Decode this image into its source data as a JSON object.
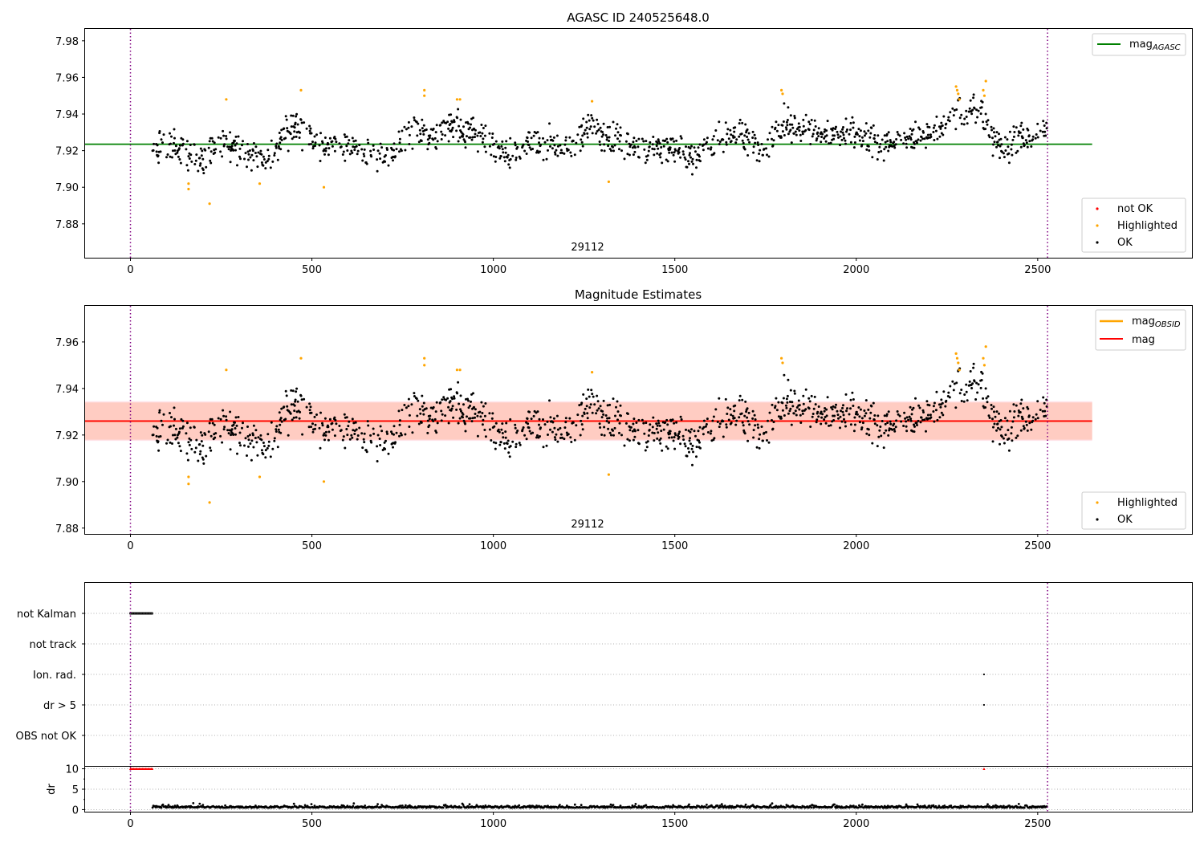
{
  "chart_data": [
    {
      "id": "agasc",
      "type": "scatter",
      "title": "AGASC ID 240525648.0",
      "xlim": [
        -125,
        2925
      ],
      "ylim": [
        7.8615,
        7.9865
      ],
      "x_ticks": [
        0,
        500,
        1000,
        1500,
        2000,
        2500
      ],
      "y_ticks": [
        7.88,
        7.9,
        7.92,
        7.94,
        7.96,
        7.98
      ],
      "y_tick_labels": [
        "7.88",
        "7.90",
        "7.92",
        "7.94",
        "7.96",
        "7.98"
      ],
      "obsid_label": "29112",
      "obs_boundaries": [
        0,
        2527
      ],
      "hline": {
        "name": "mag_AGASC",
        "value": 7.9235,
        "x_range": [
          -125,
          2650
        ],
        "color": "#008000"
      },
      "legend_line": {
        "base": "mag",
        "sub": "AGASC"
      },
      "legend_markers": [
        {
          "label": "not OK",
          "color": "#ff0000"
        },
        {
          "label": "Highlighted",
          "color": "#ffa500"
        },
        {
          "label": "OK",
          "color": "#000000"
        }
      ],
      "ok_range": [
        61,
        2527
      ],
      "highlighted_points": [
        [
          160,
          7.899
        ],
        [
          160,
          7.902
        ],
        [
          218,
          7.891
        ],
        [
          264,
          7.948
        ],
        [
          356,
          7.902
        ],
        [
          470,
          7.953
        ],
        [
          533,
          7.9
        ],
        [
          810,
          7.953
        ],
        [
          810,
          7.95
        ],
        [
          900,
          7.948
        ],
        [
          908,
          7.948
        ],
        [
          1272,
          7.947
        ],
        [
          1318,
          7.903
        ],
        [
          1794,
          7.953
        ],
        [
          1797,
          7.951
        ],
        [
          2275,
          7.955
        ],
        [
          2278,
          7.953
        ],
        [
          2281,
          7.951
        ],
        [
          2284,
          7.948
        ],
        [
          2350,
          7.953
        ],
        [
          2353,
          7.95
        ],
        [
          2357,
          7.958
        ]
      ]
    },
    {
      "id": "estimates",
      "type": "scatter",
      "title": "Magnitude Estimates",
      "xlim": [
        -125,
        2925
      ],
      "ylim": [
        7.8775,
        7.9755
      ],
      "x_ticks": [
        0,
        500,
        1000,
        1500,
        2000,
        2500
      ],
      "y_ticks": [
        7.88,
        7.9,
        7.92,
        7.94,
        7.96
      ],
      "y_tick_labels": [
        "7.88",
        "7.90",
        "7.92",
        "7.94",
        "7.96"
      ],
      "obsid_label": "29112",
      "obs_boundaries": [
        0,
        2527
      ],
      "mag": 7.926,
      "mag_band": [
        7.918,
        7.934
      ],
      "mag_obsid": 7.926,
      "obsid_band": [
        7.9175,
        7.9345
      ],
      "band_x_range": [
        -125,
        2650
      ],
      "legend_lines": [
        {
          "base": "mag",
          "sub": "OBSID",
          "color": "#ffa500"
        },
        {
          "base": "mag",
          "sub": "",
          "color": "#ff0000"
        }
      ],
      "legend_markers": [
        {
          "label": "Highlighted",
          "color": "#ffa500"
        },
        {
          "label": "OK",
          "color": "#000000"
        }
      ]
    },
    {
      "id": "flags",
      "type": "scatter",
      "xlim": [
        -125,
        2925
      ],
      "x_ticks": [
        0,
        500,
        1000,
        1500,
        2000,
        2500
      ],
      "categories": [
        "not Kalman",
        "not track",
        "Ion. rad.",
        "dr > 5",
        "OBS not OK"
      ],
      "not_kalman_range": [
        0,
        60
      ],
      "ion_rad_points": [
        2352
      ],
      "dr5_points": [
        2352
      ]
    },
    {
      "id": "dr",
      "type": "scatter",
      "ylabel": "dr",
      "xlim": [
        -125,
        2925
      ],
      "ylim": [
        -0.5,
        10.5
      ],
      "x_ticks": [
        0,
        500,
        1000,
        1500,
        2000,
        2500
      ],
      "y_ticks": [
        0,
        5,
        10
      ],
      "y_tick_labels": [
        "0",
        "5",
        "10"
      ],
      "clipped_range": [
        0,
        60
      ],
      "clipped_extra": [
        2352
      ],
      "dr_range": [
        61,
        2527
      ]
    }
  ]
}
